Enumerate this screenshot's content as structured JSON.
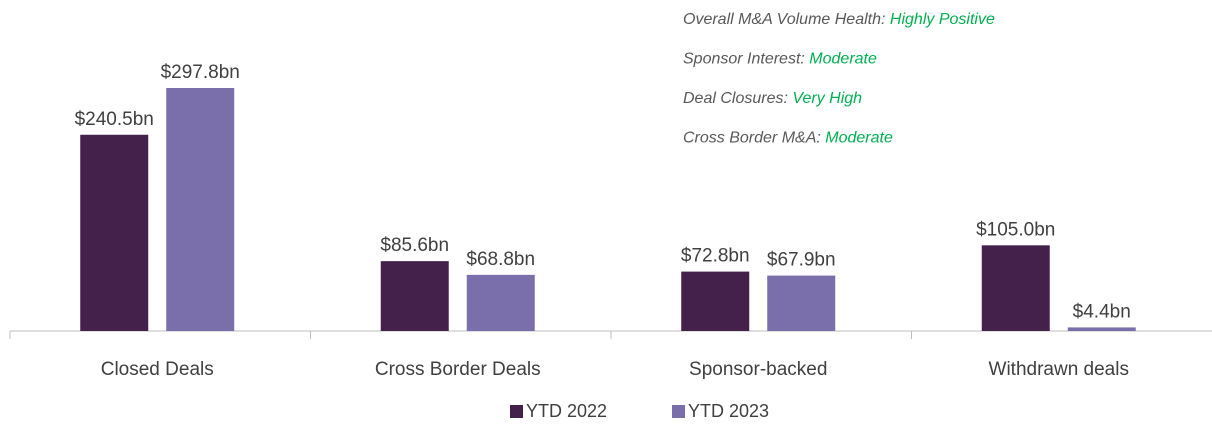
{
  "chart_data": {
    "type": "bar",
    "categories": [
      "Closed Deals",
      "Cross Border Deals",
      "Sponsor-backed",
      "Withdrawn deals"
    ],
    "series": [
      {
        "name": "YTD 2022",
        "color": "#44214a",
        "values": [
          240.5,
          85.6,
          72.8,
          105.0
        ],
        "value_labels": [
          "$240.5bn",
          "$85.6bn",
          "$72.8bn",
          "$105.0bn"
        ]
      },
      {
        "name": "YTD 2023",
        "color": "#7b6fab",
        "values": [
          297.8,
          68.8,
          67.9,
          4.4
        ],
        "value_labels": [
          "$297.8bn",
          "$68.8bn",
          "$67.9bn",
          "$4.4bn"
        ]
      }
    ],
    "annotations": [
      {
        "label": "Overall M&A Volume Health:",
        "value": "Highly Positive"
      },
      {
        "label": "Sponsor Interest:",
        "value": "Moderate"
      },
      {
        "label": "Deal Closures:",
        "value": "Very High"
      },
      {
        "label": "Cross Border M&A:",
        "value": "Moderate"
      }
    ]
  }
}
